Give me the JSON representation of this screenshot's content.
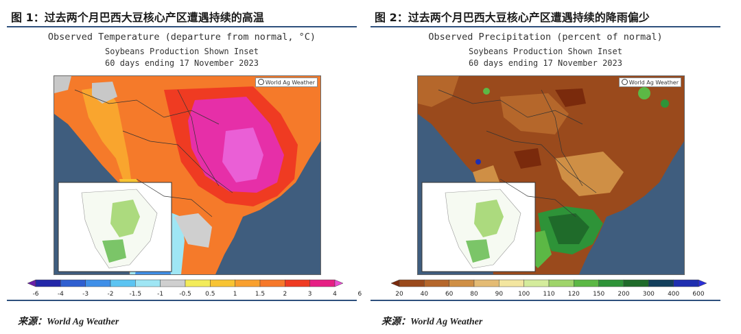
{
  "panel1": {
    "figure_title": "图 1：过去两个月巴西大豆核心产区遭遇持续的高温",
    "map_title": "Observed Temperature (departure from normal, °C)",
    "map_subtitle": "Soybeans Production Shown Inset",
    "map_period": "60 days ending 17 November 2023",
    "credit": "World Ag Weather",
    "legend": {
      "labels": [
        "-6",
        "-4",
        "-3",
        "-2",
        "-1.5",
        "-1",
        "-0.5",
        "0.5",
        "1",
        "1.5",
        "2",
        "3",
        "4",
        "6"
      ],
      "colors": [
        "#6a1fa8",
        "#2327a8",
        "#2f5fd0",
        "#3f8fe8",
        "#5cc4f2",
        "#9fe6f4",
        "#cfcfcf",
        "#f3ec5a",
        "#f8c433",
        "#f9a02e",
        "#f6782a",
        "#ef3b22",
        "#e61f84",
        "#ea4fd2"
      ]
    },
    "source": "来源：World Ag Weather"
  },
  "panel2": {
    "figure_title": "图 2：过去两个月巴西大豆核心产区遭遇持续的降雨偏少",
    "map_title": "Observed Precipitation (percent of normal)",
    "map_subtitle": "Soybeans Production Shown Inset",
    "map_period": "60 days ending 17 November 2023",
    "credit": "World Ag Weather",
    "legend": {
      "labels": [
        "20",
        "40",
        "60",
        "80",
        "90",
        "100",
        "110",
        "120",
        "150",
        "200",
        "300",
        "400",
        "600"
      ],
      "colors": [
        "#7a2a0c",
        "#9a4a1c",
        "#b5672b",
        "#cf8f45",
        "#e4bb74",
        "#f3e6a0",
        "#d4ec9c",
        "#9fd46a",
        "#5cb845",
        "#2e9338",
        "#1f6b2a",
        "#123f5c",
        "#1f2fb0",
        "#2b2fd8"
      ]
    },
    "source": "来源：World Ag Weather"
  },
  "colors": {
    "ocean": "#3f5d7e",
    "rule": "#2d4f7c"
  }
}
